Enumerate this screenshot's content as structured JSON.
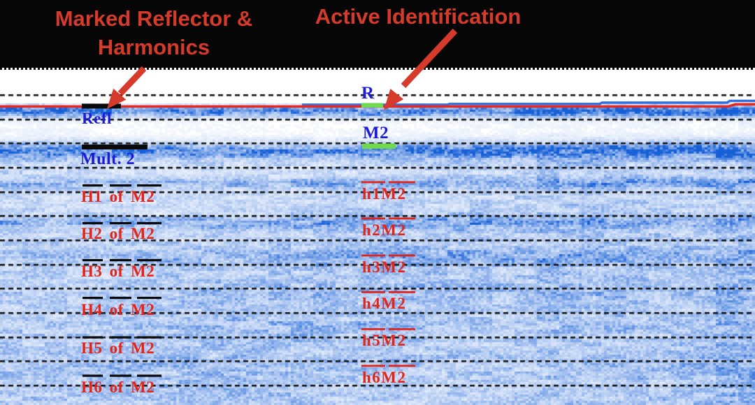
{
  "banner": {
    "marked_line1": "Marked Reflector &",
    "marked_line2": "Harmonics",
    "active": "Active Identification"
  },
  "marked_column": {
    "items": [
      {
        "text": "Refl",
        "color": "blue",
        "marker": "solid-black-bar"
      },
      {
        "text": "Mult. 2",
        "color": "blue",
        "marker": "solid-black-bar"
      },
      {
        "text": "H1 of M2",
        "color": "red",
        "marker": "black-overline-dashes"
      },
      {
        "text": "H2 of M2",
        "color": "red",
        "marker": "black-overline-dashes"
      },
      {
        "text": "H3 of M2",
        "color": "red",
        "marker": "black-overline-dashes"
      },
      {
        "text": "H4 of M2",
        "color": "red",
        "marker": "black-overline-dashes"
      },
      {
        "text": "H5 of M2",
        "color": "red",
        "marker": "black-overline-dashes"
      },
      {
        "text": "H6 of M2",
        "color": "red",
        "marker": "black-overline-dashes"
      }
    ]
  },
  "active_column": {
    "items": [
      {
        "text": "R",
        "color": "blue",
        "marker": "green-bar"
      },
      {
        "text": "M2",
        "color": "blue",
        "marker": "green-bar"
      },
      {
        "text": "h1M2",
        "color": "red",
        "marker": "red-overline"
      },
      {
        "text": "h2M2",
        "color": "red",
        "marker": "red-overline"
      },
      {
        "text": "h3M2",
        "color": "red",
        "marker": "red-overline"
      },
      {
        "text": "h4M2",
        "color": "red",
        "marker": "red-overline"
      },
      {
        "text": "h5M2",
        "color": "red",
        "marker": "red-overline"
      },
      {
        "text": "h6M2",
        "color": "red",
        "marker": "red-overline"
      }
    ]
  },
  "colors": {
    "annotation_red": "#d63a2b",
    "label_blue": "#1c1cd8",
    "label_red": "#e2251b",
    "marker_green": "#70d94e",
    "picked_line_red": "#e8281e",
    "trace_blue": "#2f6fe3",
    "marker_black": "#0a0a0a"
  }
}
